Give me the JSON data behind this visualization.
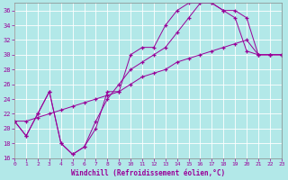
{
  "xlabel": "Windchill (Refroidissement éolien,°C)",
  "background_color": "#b2e8e8",
  "grid_color": "#ffffff",
  "line_color": "#990099",
  "xlim": [
    0,
    23
  ],
  "ylim": [
    16,
    37
  ],
  "xticks": [
    0,
    1,
    2,
    3,
    4,
    5,
    6,
    7,
    8,
    9,
    10,
    11,
    12,
    13,
    14,
    15,
    16,
    17,
    18,
    19,
    20,
    21,
    22,
    23
  ],
  "yticks": [
    16,
    18,
    20,
    22,
    24,
    26,
    28,
    30,
    32,
    34,
    36
  ],
  "line1_x": [
    0,
    1,
    2,
    3,
    4,
    5,
    6,
    7,
    8,
    9,
    10,
    11,
    12,
    13,
    14,
    15,
    16,
    17,
    18,
    19,
    20,
    21,
    22,
    23
  ],
  "line1_y": [
    21,
    19,
    22,
    25,
    18,
    16.5,
    17.5,
    20,
    25,
    25,
    30,
    31,
    31,
    34,
    36,
    37,
    37,
    37,
    36,
    35,
    30.5,
    30,
    30,
    30
  ],
  "line2_x": [
    0,
    1,
    2,
    3,
    4,
    5,
    6,
    7,
    8,
    9,
    10,
    11,
    12,
    13,
    14,
    15,
    16,
    17,
    18,
    19,
    20,
    21,
    22,
    23
  ],
  "line2_y": [
    21,
    21,
    21.5,
    22,
    22.5,
    23,
    23.5,
    24,
    24.5,
    25,
    26,
    27,
    27.5,
    28,
    29,
    29.5,
    30,
    30.5,
    31,
    31.5,
    32,
    30,
    30,
    30
  ],
  "line3_x": [
    0,
    1,
    2,
    3,
    4,
    5,
    6,
    7,
    8,
    9,
    10,
    11,
    12,
    13,
    14,
    15,
    16,
    17,
    18,
    19,
    20,
    21,
    22,
    23
  ],
  "line3_y": [
    21,
    19,
    22,
    25,
    18,
    16.5,
    17.5,
    21,
    24,
    26,
    28,
    29,
    30,
    31,
    33,
    35,
    37,
    37,
    36,
    36,
    35,
    30,
    30,
    30
  ]
}
